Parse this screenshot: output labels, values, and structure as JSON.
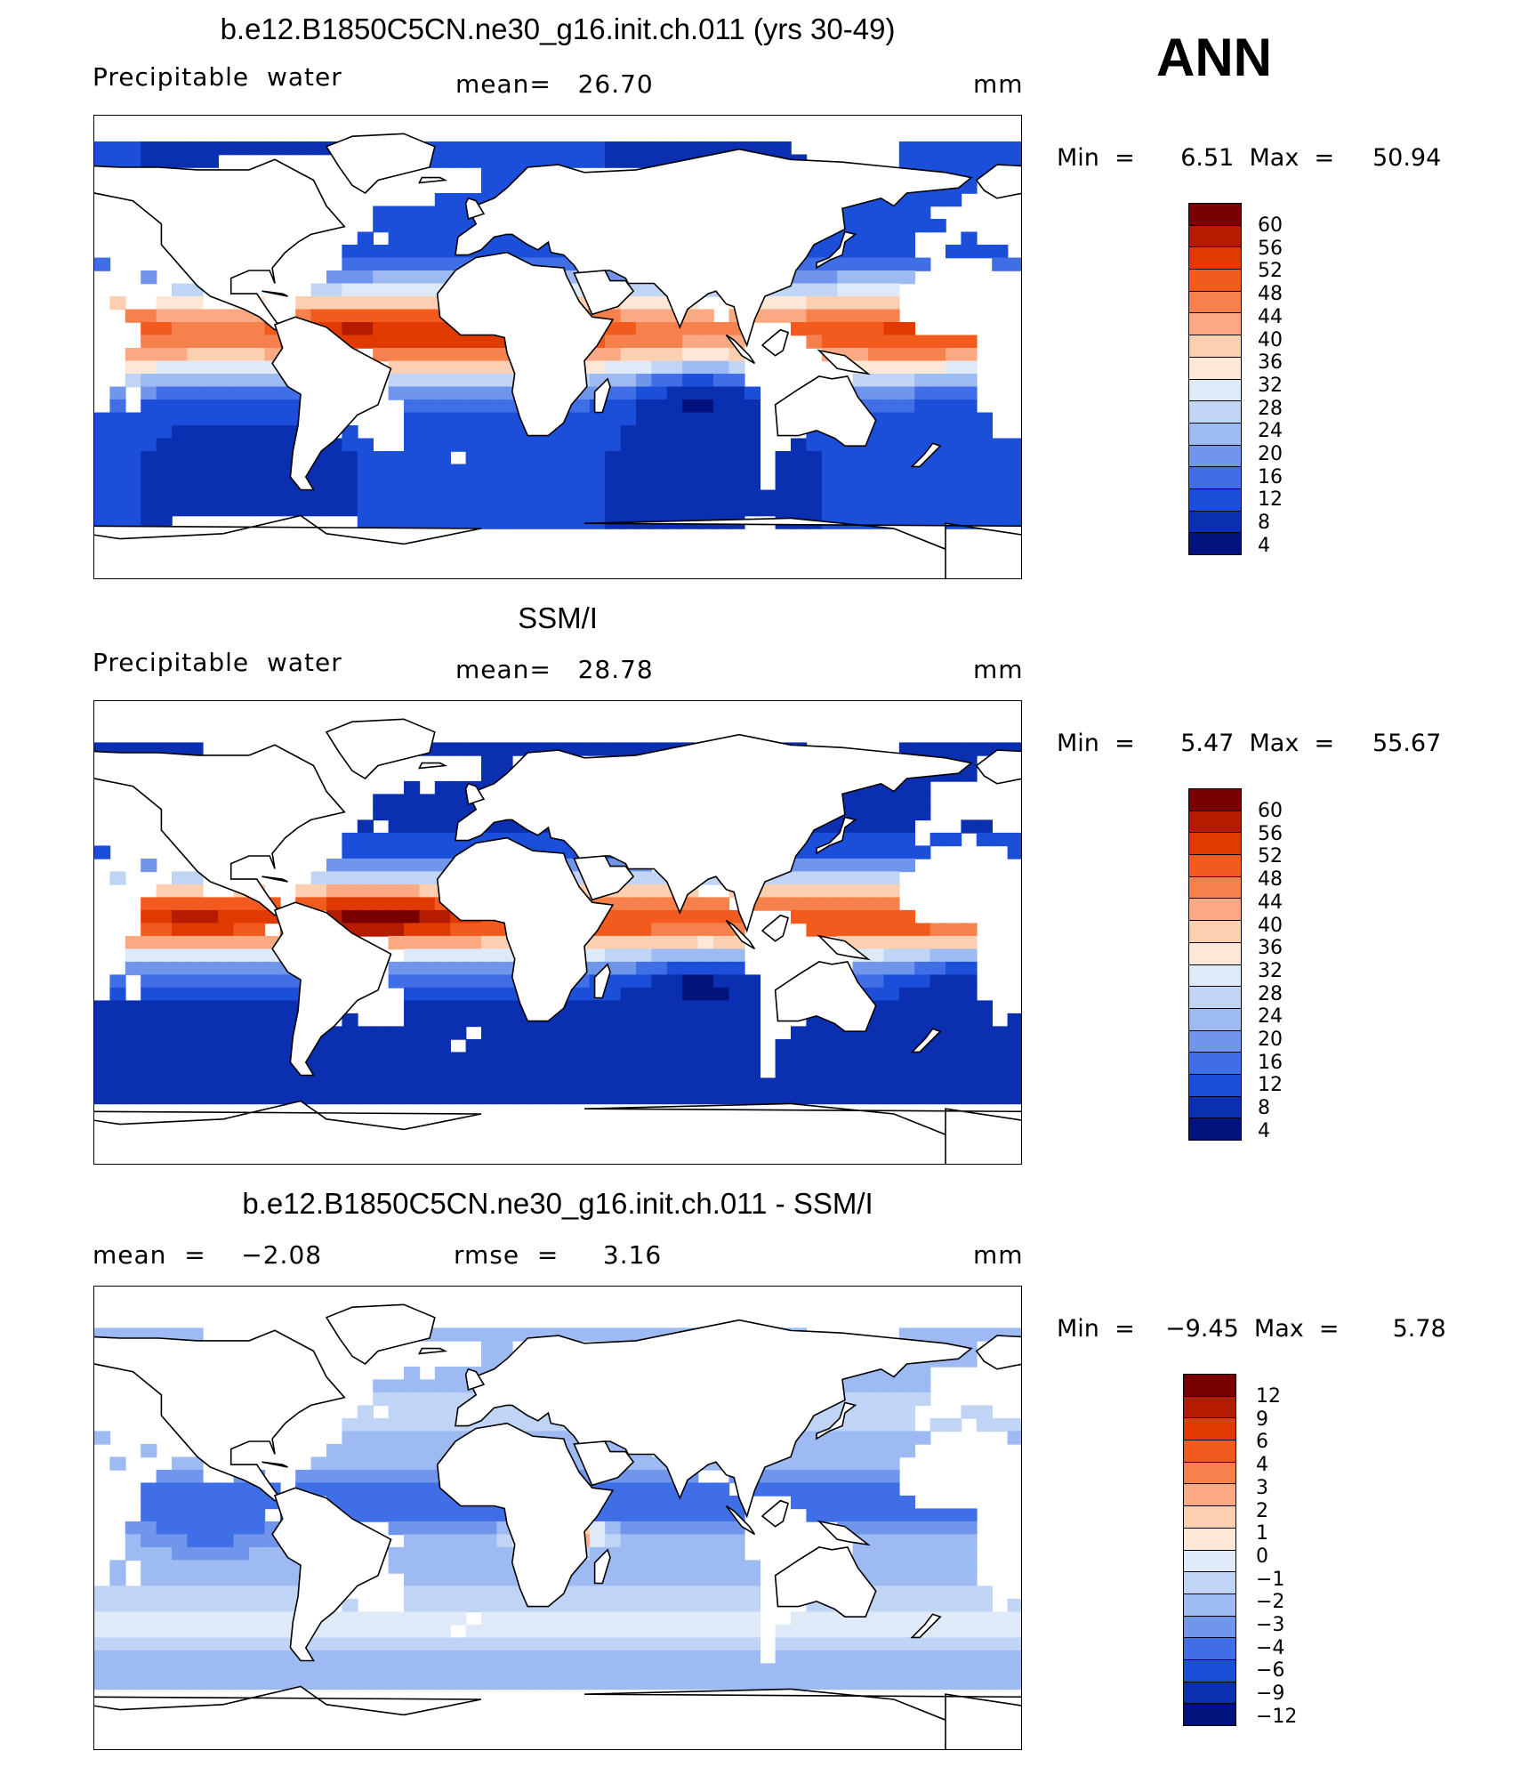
{
  "season": "ANN",
  "panels": [
    {
      "title": "b.e12.B1850C5CN.ne30_g16.init.ch.011 (yrs 30-49)",
      "left": "Precipitable  water",
      "center": "mean=   26.70",
      "right": "mm",
      "minmax": "Min  =      6.51  Max  =     50.94",
      "scale": [
        "60",
        "56",
        "52",
        "48",
        "44",
        "40",
        "36",
        "32",
        "28",
        "24",
        "20",
        "16",
        "12",
        "8",
        "4"
      ],
      "colors": [
        "#7a0000",
        "#b51b00",
        "#e03a00",
        "#f25a1e",
        "#f7814c",
        "#fba983",
        "#fdcfb1",
        "#fde8d8",
        "#dfeaf8",
        "#c0d4f5",
        "#9dbaf2",
        "#7096ec",
        "#3f6ee6",
        "#1c4fd9",
        "#0a2fb0",
        "#00127c"
      ],
      "type": "model"
    },
    {
      "title": "SSM/I",
      "left": "Precipitable  water",
      "center": "mean=   28.78",
      "right": "mm",
      "minmax": "Min  =      5.47  Max  =     55.67",
      "scale": [
        "60",
        "56",
        "52",
        "48",
        "44",
        "40",
        "36",
        "32",
        "28",
        "24",
        "20",
        "16",
        "12",
        "8",
        "4"
      ],
      "colors": [
        "#7a0000",
        "#b51b00",
        "#e03a00",
        "#f25a1e",
        "#f7814c",
        "#fba983",
        "#fdcfb1",
        "#fde8d8",
        "#dfeaf8",
        "#c0d4f5",
        "#9dbaf2",
        "#7096ec",
        "#3f6ee6",
        "#1c4fd9",
        "#0a2fb0",
        "#00127c"
      ],
      "type": "obs"
    },
    {
      "title": "b.e12.B1850C5CN.ne30_g16.init.ch.011 - SSM/I",
      "left": "mean  =    −2.08",
      "center": "rmse  =     3.16",
      "right": "mm",
      "minmax": "Min  =    −9.45  Max  =       5.78",
      "scale": [
        "12",
        "9",
        "6",
        "4",
        "3",
        "2",
        "1",
        "0",
        "−1",
        "−2",
        "−3",
        "−4",
        "−6",
        "−9",
        "−12"
      ],
      "colors": [
        "#7a0000",
        "#b51b00",
        "#e03a00",
        "#f25a1e",
        "#f7814c",
        "#fba983",
        "#fdcfb1",
        "#fde8d8",
        "#dfeaf8",
        "#c0d4f5",
        "#9dbaf2",
        "#7096ec",
        "#3f6ee6",
        "#1c4fd9",
        "#0a2fb0",
        "#00127c"
      ],
      "type": "diff"
    }
  ]
}
